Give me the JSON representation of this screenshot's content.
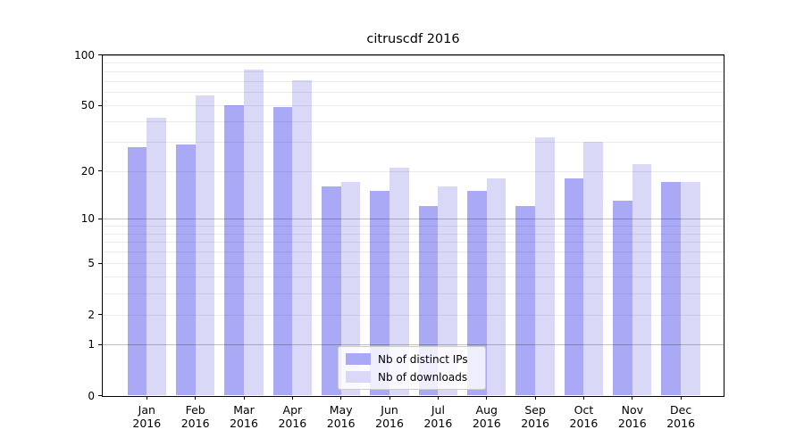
{
  "chart_data": {
    "type": "bar",
    "title": "citruscdf 2016",
    "categories": [
      "Jan 2016",
      "Feb 2016",
      "Mar 2016",
      "Apr 2016",
      "May 2016",
      "Jun 2016",
      "Jul 2016",
      "Aug 2016",
      "Sep 2016",
      "Oct 2016",
      "Nov 2016",
      "Dec 2016"
    ],
    "series": [
      {
        "name": "Nb of distinct IPs",
        "color": "#a9a9f6",
        "values": [
          28,
          29,
          50,
          49,
          16,
          15,
          12,
          15,
          12,
          18,
          13,
          17
        ]
      },
      {
        "name": "Nb of downloads",
        "color": "#d9d9f7",
        "values": [
          42,
          57,
          82,
          71,
          17,
          21,
          16,
          18,
          32,
          30,
          22,
          17
        ]
      }
    ],
    "y_axis": {
      "scale": "log1p",
      "ylim": [
        0,
        100
      ],
      "tick_labels": [
        0,
        1,
        2,
        5,
        10,
        20,
        50,
        100
      ],
      "grid_major_values": [
        1,
        10,
        100
      ],
      "grid_minor_values": [
        2,
        3,
        4,
        5,
        6,
        7,
        8,
        9,
        20,
        30,
        40,
        50,
        60,
        70,
        80,
        90
      ]
    },
    "legend": {
      "position": "lower center"
    },
    "grid": true
  }
}
